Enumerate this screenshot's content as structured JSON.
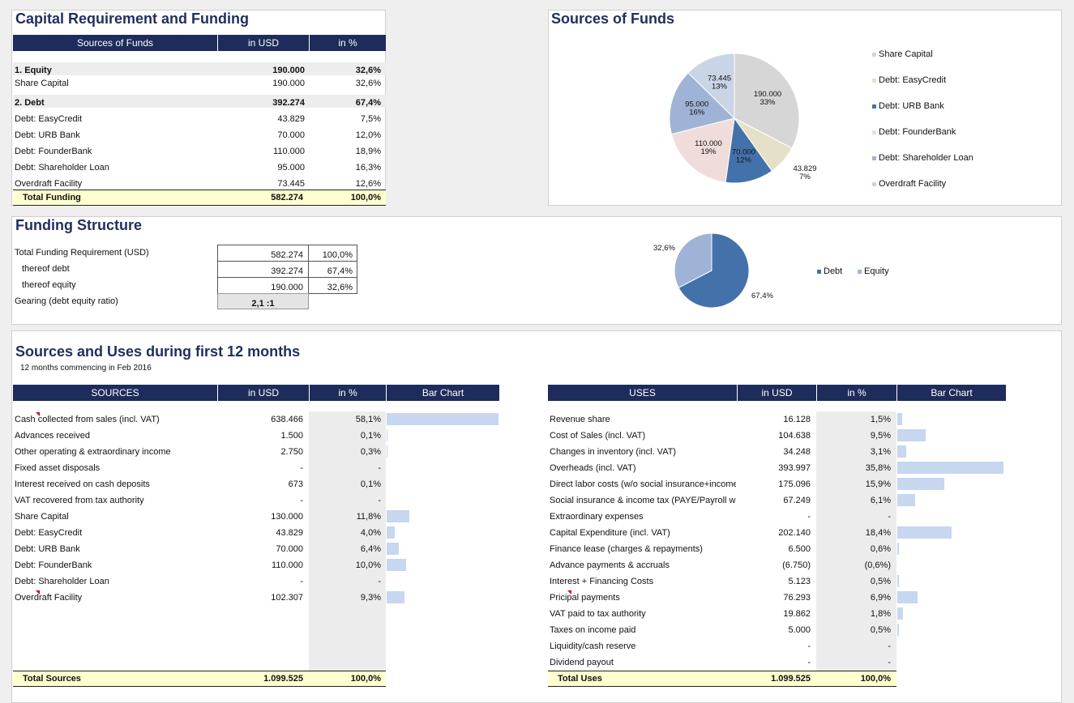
{
  "capital": {
    "title": "Capital Requirement and Funding",
    "headers": [
      "Sources of Funds",
      "in USD",
      "in %"
    ],
    "rows": [
      {
        "label": "1. Equity",
        "usd": "190.000",
        "pct": "32,6%",
        "bold": true
      },
      {
        "label": "Share Capital",
        "usd": "190.000",
        "pct": "32,6%"
      },
      {
        "label": "2. Debt",
        "usd": "392.274",
        "pct": "67,4%",
        "bold": true
      },
      {
        "label": "Debt: EasyCredit",
        "usd": "43.829",
        "pct": "7,5%"
      },
      {
        "label": "Debt: URB Bank",
        "usd": "70.000",
        "pct": "12,0%"
      },
      {
        "label": "Debt: FounderBank",
        "usd": "110.000",
        "pct": "18,9%"
      },
      {
        "label": "Debt: Shareholder Loan",
        "usd": "95.000",
        "pct": "16,3%"
      },
      {
        "label": "Overdraft Facility",
        "usd": "73.445",
        "pct": "12,6%"
      }
    ],
    "total": {
      "label": "Total Funding",
      "usd": "582.274",
      "pct": "100,0%"
    }
  },
  "sources_chart": {
    "title": "Sources of Funds",
    "legend": [
      "Share Capital",
      "Debt: EasyCredit",
      "Debt: URB Bank",
      "Debt: FounderBank",
      "Debt: Shareholder Loan",
      "Overdraft Facility"
    ],
    "colors": [
      "#d6d6d6",
      "#e5e1c8",
      "#4372ab",
      "#f1dcdc",
      "#9fb3d6",
      "#c9d4e6"
    ]
  },
  "funding": {
    "title": "Funding Structure",
    "rows": [
      {
        "label": "Total Funding Requirement (USD)",
        "usd": "582.274",
        "pct": "100,0%"
      },
      {
        "label": "thereof debt",
        "usd": "392.274",
        "pct": "67,4%"
      },
      {
        "label": "thereof equity",
        "usd": "190.000",
        "pct": "32,6%"
      }
    ],
    "gearing_label": "Gearing (debt equity ratio)",
    "gearing_value": "2,1 :1",
    "legend": [
      "Debt",
      "Equity"
    ],
    "colors": [
      "#4372ab",
      "#9fb3d6"
    ]
  },
  "sources_uses": {
    "title": "Sources and Uses during first 12 months",
    "subtitle": "12 months commencing in Feb 2016",
    "sources_headers": [
      "SOURCES",
      "in USD",
      "in %",
      "Bar Chart"
    ],
    "uses_headers": [
      "USES",
      "in USD",
      "in %",
      "Bar Chart"
    ],
    "bar_color": "#c6d7ef",
    "sources": [
      {
        "label": "Cash collected from sales (incl. VAT)",
        "usd": "638.466",
        "pct": "58,1%",
        "frac": 0.581
      },
      {
        "label": "Advances received",
        "usd": "1.500",
        "pct": "0,1%",
        "frac": 0.001
      },
      {
        "label": "Other operating & extraordinary income",
        "usd": "2.750",
        "pct": "0,3%",
        "frac": 0.003
      },
      {
        "label": "Fixed asset disposals",
        "usd": "-",
        "pct": "-",
        "frac": 0
      },
      {
        "label": "Interest received on cash deposits",
        "usd": "673",
        "pct": "0,1%",
        "frac": 0
      },
      {
        "label": "VAT recovered from tax authority",
        "usd": "-",
        "pct": "-",
        "frac": 0
      },
      {
        "label": "Share Capital",
        "usd": "130.000",
        "pct": "11,8%",
        "frac": 0.118
      },
      {
        "label": "Debt: EasyCredit",
        "usd": "43.829",
        "pct": "4,0%",
        "frac": 0.04
      },
      {
        "label": "Debt: URB Bank",
        "usd": "70.000",
        "pct": "6,4%",
        "frac": 0.064
      },
      {
        "label": "Debt: FounderBank",
        "usd": "110.000",
        "pct": "10,0%",
        "frac": 0.1
      },
      {
        "label": "Debt: Shareholder Loan",
        "usd": "-",
        "pct": "-",
        "frac": 0
      },
      {
        "label": "Overdraft Facility",
        "usd": "102.307",
        "pct": "9,3%",
        "frac": 0.093
      }
    ],
    "sources_total": {
      "label": "Total Sources",
      "usd": "1.099.525",
      "pct": "100,0%"
    },
    "uses": [
      {
        "label": "Revenue share",
        "usd": "16.128",
        "pct": "1,5%",
        "frac": 0.015
      },
      {
        "label": "Cost of Sales (incl. VAT)",
        "usd": "104.638",
        "pct": "9,5%",
        "frac": 0.095
      },
      {
        "label": "Changes in inventory (incl. VAT)",
        "usd": "34.248",
        "pct": "3,1%",
        "frac": 0.031
      },
      {
        "label": "Overheads (incl. VAT)",
        "usd": "393.997",
        "pct": "35,8%",
        "frac": 0.358
      },
      {
        "label": "Direct labor costs (w/o social insurance+income",
        "usd": "175.096",
        "pct": "15,9%",
        "frac": 0.159
      },
      {
        "label": "Social insurance & income tax (PAYE/Payroll wi",
        "usd": "67.249",
        "pct": "6,1%",
        "frac": 0.061
      },
      {
        "label": "Extraordinary expenses",
        "usd": "-",
        "pct": "-",
        "frac": 0
      },
      {
        "label": "Capital Expenditure (incl. VAT)",
        "usd": "202.140",
        "pct": "18,4%",
        "frac": 0.184
      },
      {
        "label": "Finance lease (charges & repayments)",
        "usd": "6.500",
        "pct": "0,6%",
        "frac": 0.006
      },
      {
        "label": "Advance payments & accruals",
        "usd": "(6.750)",
        "pct": "(0,6%)",
        "frac": 0
      },
      {
        "label": "Interest + Financing Costs",
        "usd": "5.123",
        "pct": "0,5%",
        "frac": 0.005
      },
      {
        "label": "Pricipal payments",
        "usd": "76.293",
        "pct": "6,9%",
        "frac": 0.069
      },
      {
        "label": "VAT paid to tax authority",
        "usd": "19.862",
        "pct": "1,8%",
        "frac": 0.018
      },
      {
        "label": "Taxes on income paid",
        "usd": "5.000",
        "pct": "0,5%",
        "frac": 0.005
      },
      {
        "label": "Liquidity/cash reserve",
        "usd": "-",
        "pct": "-",
        "frac": 0
      },
      {
        "label": "Dividend payout",
        "usd": "-",
        "pct": "-",
        "frac": 0
      }
    ],
    "uses_total": {
      "label": "Total Uses",
      "usd": "1.099.525",
      "pct": "100,0%"
    }
  },
  "chart_data": [
    {
      "type": "pie",
      "title": "Sources of Funds",
      "categories": [
        "Share Capital",
        "Debt: EasyCredit",
        "Debt: URB Bank",
        "Debt: FounderBank",
        "Debt: Shareholder Loan",
        "Overdraft Facility"
      ],
      "values": [
        190000,
        43829,
        70000,
        110000,
        95000,
        73445
      ],
      "labels": [
        {
          "value": "190.000",
          "pct": "33%"
        },
        {
          "value": "43.829",
          "pct": "7%"
        },
        {
          "value": "70.000",
          "pct": "12%"
        },
        {
          "value": "110.000",
          "pct": "19%"
        },
        {
          "value": "95.000",
          "pct": "16%"
        },
        {
          "value": "73.445",
          "pct": "13%"
        }
      ],
      "legend_position": "right"
    },
    {
      "type": "pie",
      "title": "",
      "categories": [
        "Debt",
        "Equity"
      ],
      "values": [
        67.4,
        32.6
      ],
      "labels": [
        {
          "pct": "67,4%"
        },
        {
          "pct": "32,6%"
        }
      ],
      "legend_position": "right"
    }
  ]
}
